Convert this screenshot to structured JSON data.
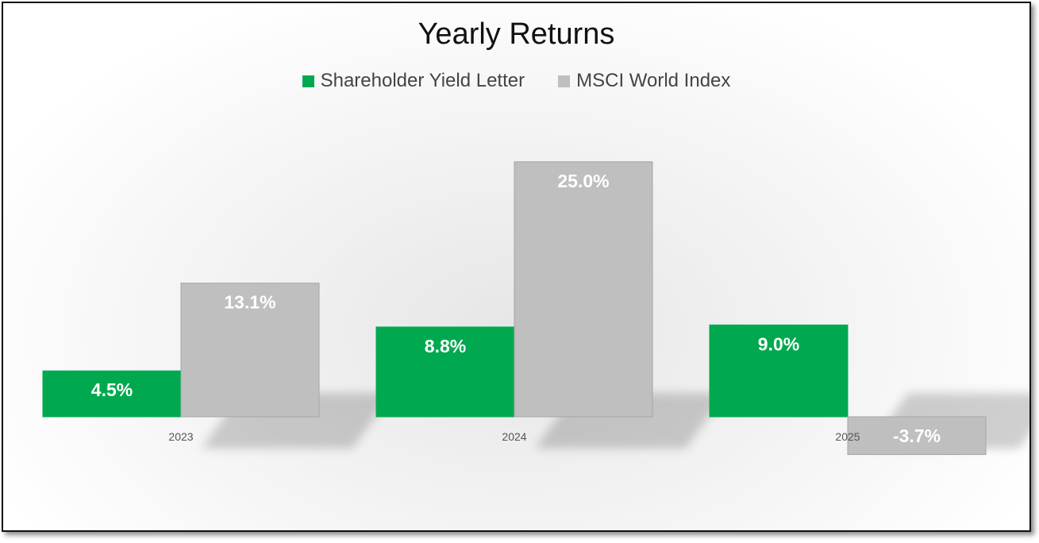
{
  "chart_data": {
    "type": "bar",
    "title": "Yearly Returns",
    "categories": [
      "2023",
      "2024",
      "2025"
    ],
    "series": [
      {
        "name": "Shareholder Yield Letter",
        "values": [
          4.5,
          8.8,
          9.0
        ],
        "labels": [
          "4.5%",
          "8.8%",
          "9.0%"
        ],
        "color": "#00a94f"
      },
      {
        "name": "MSCI World Index",
        "values": [
          13.1,
          25.0,
          -3.7
        ],
        "labels": [
          "13.1%",
          "25.0%",
          "-3.7%"
        ],
        "color": "#bfbfbf"
      }
    ],
    "legend_position": "top",
    "grid": false
  }
}
